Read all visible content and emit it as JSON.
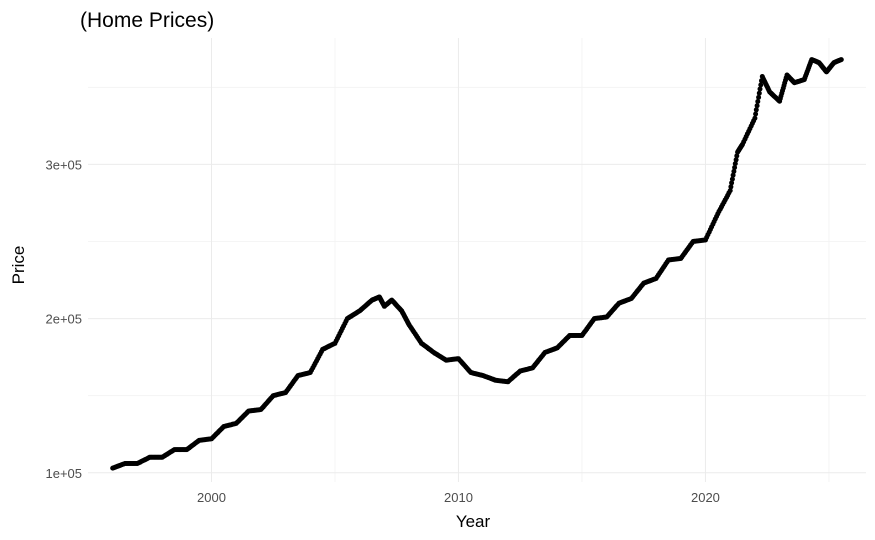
{
  "chart_data": {
    "type": "line",
    "title": "(Home Prices)",
    "xlabel": "Year",
    "ylabel": "Price",
    "xlim": [
      1995.0,
      2026.5
    ],
    "ylim": [
      94000,
      382000
    ],
    "x_ticks": [
      2000,
      2010,
      2020
    ],
    "x_tick_labels": [
      "2000",
      "2010",
      "2020"
    ],
    "y_ticks": [
      100000,
      200000,
      300000
    ],
    "y_tick_labels": [
      "1e+05",
      "2e+05",
      "3e+05"
    ],
    "grid": true,
    "legend": "none",
    "colors": {
      "points": "#000000",
      "line": "#1f5fbf",
      "grid": "#ebebeb"
    },
    "series": [
      {
        "x": [
          1996.0,
          1996.5,
          1997.0,
          1997.5,
          1998.0,
          1998.5,
          1999.0,
          1999.5,
          2000.0,
          2000.5,
          2001.0,
          2001.5,
          2002.0,
          2002.5,
          2003.0,
          2003.5,
          2004.0,
          2004.5,
          2005.0,
          2005.5,
          2006.0,
          2006.5,
          2006.8,
          2007.0,
          2007.3,
          2007.7,
          2008.0,
          2008.5,
          2009.0,
          2009.5,
          2010.0,
          2010.5,
          2011.0,
          2011.5,
          2012.0,
          2012.5,
          2013.0,
          2013.5,
          2014.0,
          2014.5,
          2015.0,
          2015.5,
          2016.0,
          2016.5,
          2017.0,
          2017.5,
          2018.0,
          2018.5,
          2019.0,
          2019.5,
          2020.0,
          2020.5,
          2021.0,
          2021.3,
          2021.5,
          2022.0,
          2022.3,
          2022.6,
          2023.0,
          2023.3,
          2023.6,
          2024.0,
          2024.3,
          2024.6,
          2024.9,
          2025.2,
          2025.5
        ],
        "y": [
          103000,
          106000,
          106000,
          110000,
          110000,
          115000,
          115000,
          121000,
          122000,
          130000,
          132000,
          140000,
          141000,
          150000,
          152000,
          163000,
          165000,
          180000,
          184000,
          200000,
          205000,
          212000,
          214000,
          208000,
          212000,
          205000,
          196000,
          184000,
          178000,
          173000,
          174000,
          165000,
          163000,
          160000,
          159000,
          166000,
          168000,
          178000,
          181000,
          189000,
          189000,
          200000,
          201000,
          210000,
          213000,
          223000,
          226000,
          238000,
          239000,
          250000,
          251000,
          268000,
          283000,
          308000,
          313000,
          330000,
          357000,
          347000,
          341000,
          358000,
          353000,
          355000,
          368000,
          366000,
          360000,
          366000,
          368000
        ]
      }
    ]
  }
}
